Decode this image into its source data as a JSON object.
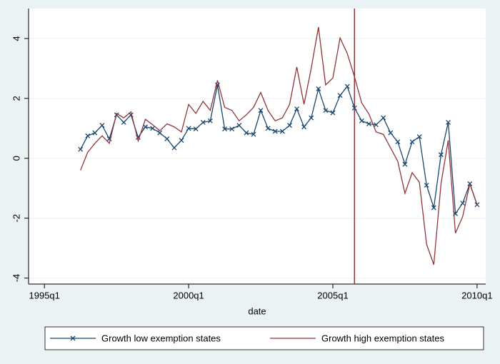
{
  "chart_data": {
    "type": "line",
    "x_label": "date",
    "x": [
      145,
      146,
      147,
      148,
      149,
      150,
      151,
      152,
      153,
      154,
      155,
      156,
      157,
      158,
      159,
      160,
      161,
      162,
      163,
      164,
      165,
      166,
      167,
      168,
      169,
      170,
      171,
      172,
      173,
      174,
      175,
      176,
      177,
      178,
      179,
      180,
      181,
      182,
      183,
      184,
      185,
      186,
      187,
      188,
      189,
      190,
      191,
      192,
      193,
      194,
      195,
      196,
      197,
      198,
      199,
      200
    ],
    "series": [
      {
        "name": "Growth low exemption states",
        "color": "#1a476f",
        "marker": "x",
        "values": [
          0.3,
          0.75,
          0.85,
          1.1,
          0.65,
          1.45,
          1.2,
          1.45,
          0.7,
          1.05,
          1.0,
          0.85,
          0.65,
          0.35,
          0.6,
          1.0,
          0.98,
          1.2,
          1.25,
          2.45,
          0.98,
          0.98,
          1.1,
          0.85,
          0.8,
          1.6,
          1.0,
          0.9,
          0.9,
          1.1,
          1.65,
          1.05,
          1.35,
          2.32,
          1.6,
          1.52,
          2.1,
          2.4,
          1.68,
          1.25,
          1.15,
          1.12,
          1.35,
          0.85,
          0.55,
          -0.2,
          0.55,
          0.72,
          -0.9,
          -1.65,
          0.12,
          1.2,
          -1.85,
          -1.5,
          -0.85,
          -1.55
        ]
      },
      {
        "name": "Growth high exemption states",
        "color": "#90353b",
        "values": [
          -0.4,
          0.2,
          0.5,
          0.75,
          0.5,
          1.5,
          1.35,
          1.55,
          0.58,
          1.3,
          1.12,
          0.92,
          1.15,
          1.05,
          0.88,
          1.8,
          1.5,
          1.9,
          1.6,
          2.6,
          1.7,
          1.6,
          1.25,
          1.45,
          1.7,
          2.2,
          1.6,
          1.25,
          1.35,
          1.8,
          3.05,
          1.8,
          3.0,
          4.38,
          2.45,
          2.68,
          4.02,
          3.5,
          2.72,
          1.85,
          1.48,
          0.88,
          0.8,
          0.35,
          -0.1,
          -1.17,
          -0.48,
          -0.8,
          -2.87,
          -3.55,
          -0.85,
          0.6,
          -2.5,
          -1.95,
          -0.85,
          -1.55
        ]
      }
    ],
    "xline": 183,
    "xline_color": "#90353b",
    "xlim": [
      137.8,
      201.2
    ],
    "xticks": [
      {
        "value": 140,
        "label": "1995q1"
      },
      {
        "value": 160,
        "label": "2000q1"
      },
      {
        "value": 180,
        "label": "2005q1"
      },
      {
        "value": 200,
        "label": "2010q1"
      }
    ],
    "ylim": [
      -4.2,
      5.0
    ],
    "yticks": [
      -4,
      -2,
      0,
      2,
      4
    ],
    "grid": true,
    "legend": "bottom"
  }
}
